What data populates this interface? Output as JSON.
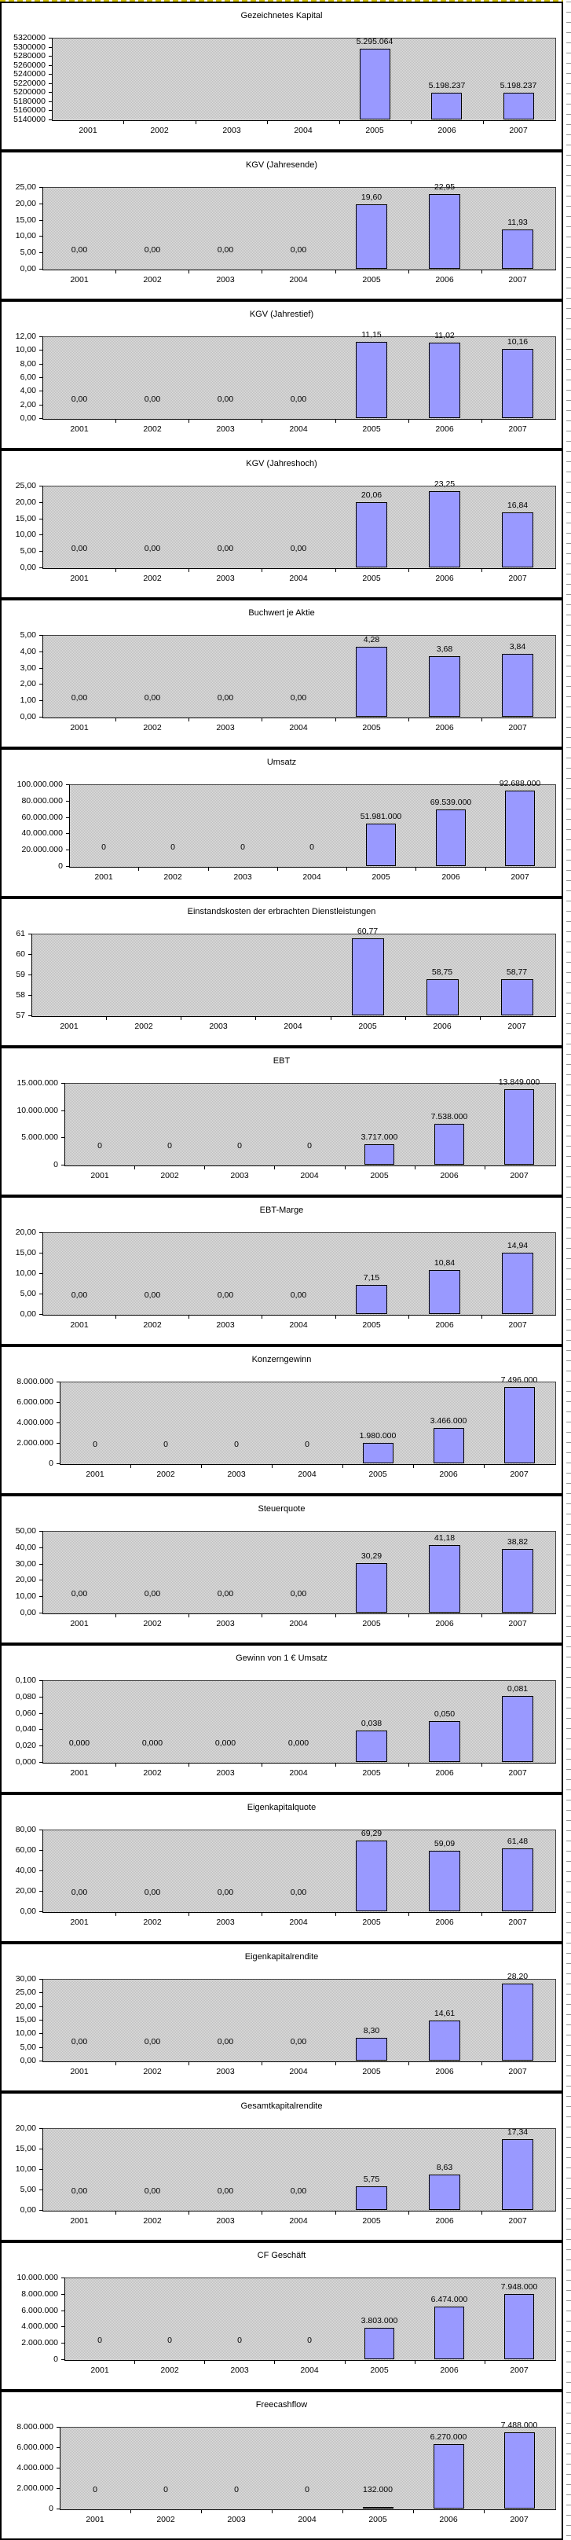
{
  "page": {
    "bar_color": "#9999ff",
    "bar_border_color": "#000000",
    "plot_pattern_color_dark": "#bfbfbf",
    "plot_pattern_color_light": "#dddddd",
    "panel_border_color": "#000000",
    "page_break_line_color": "#cdbc00"
  },
  "chart_data": [
    {
      "type": "bar",
      "title": "Gezeichnetes Kapital",
      "categories": [
        "2001",
        "2002",
        "2003",
        "2004",
        "2005",
        "2006",
        "2007"
      ],
      "values": [
        null,
        null,
        null,
        null,
        5295064,
        5198237,
        5198237
      ],
      "value_labels": [
        "",
        "",
        "",
        "",
        "5.295.064",
        "5.198.237",
        "5.198.237"
      ],
      "ylim": [
        5140000,
        5320000
      ],
      "grid": false,
      "legend": null,
      "yticks": [
        "5320000",
        "5300000",
        "5280000",
        "5260000",
        "5240000",
        "5220000",
        "5200000",
        "5180000",
        "5160000",
        "5140000"
      ],
      "plot_left": 64
    },
    {
      "type": "bar",
      "title": "KGV (Jahresende)",
      "categories": [
        "2001",
        "2002",
        "2003",
        "2004",
        "2005",
        "2006",
        "2007"
      ],
      "values": [
        0,
        0,
        0,
        0,
        19.6,
        22.95,
        11.93
      ],
      "value_labels": [
        "0,00",
        "0,00",
        "0,00",
        "0,00",
        "19,60",
        "22,95",
        "11,93"
      ],
      "ylim": [
        0,
        25
      ],
      "grid": false,
      "legend": null,
      "yticks": [
        "25,00",
        "20,00",
        "15,00",
        "10,00",
        "5,00",
        "0,00"
      ],
      "plot_left": 52
    },
    {
      "type": "bar",
      "title": "KGV (Jahrestief)",
      "categories": [
        "2001",
        "2002",
        "2003",
        "2004",
        "2005",
        "2006",
        "2007"
      ],
      "values": [
        0,
        0,
        0,
        0,
        11.15,
        11.02,
        10.16
      ],
      "value_labels": [
        "0,00",
        "0,00",
        "0,00",
        "0,00",
        "11,15",
        "11,02",
        "10,16"
      ],
      "ylim": [
        0,
        12
      ],
      "grid": false,
      "legend": null,
      "yticks": [
        "12,00",
        "10,00",
        "8,00",
        "6,00",
        "4,00",
        "2,00",
        "0,00"
      ],
      "plot_left": 52
    },
    {
      "type": "bar",
      "title": "KGV (Jahreshoch)",
      "categories": [
        "2001",
        "2002",
        "2003",
        "2004",
        "2005",
        "2006",
        "2007"
      ],
      "values": [
        0,
        0,
        0,
        0,
        20.06,
        23.25,
        16.84
      ],
      "value_labels": [
        "0,00",
        "0,00",
        "0,00",
        "0,00",
        "20,06",
        "23,25",
        "16,84"
      ],
      "ylim": [
        0,
        25
      ],
      "grid": false,
      "legend": null,
      "yticks": [
        "25,00",
        "20,00",
        "15,00",
        "10,00",
        "5,00",
        "0,00"
      ],
      "plot_left": 52
    },
    {
      "type": "bar",
      "title": "Buchwert je Aktie",
      "categories": [
        "2001",
        "2002",
        "2003",
        "2004",
        "2005",
        "2006",
        "2007"
      ],
      "values": [
        0,
        0,
        0,
        0,
        4.28,
        3.68,
        3.84
      ],
      "value_labels": [
        "0,00",
        "0,00",
        "0,00",
        "0,00",
        "4,28",
        "3,68",
        "3,84"
      ],
      "ylim": [
        0,
        5
      ],
      "grid": false,
      "legend": null,
      "yticks": [
        "5,00",
        "4,00",
        "3,00",
        "2,00",
        "1,00",
        "0,00"
      ],
      "plot_left": 52
    },
    {
      "type": "bar",
      "title": "Umsatz",
      "categories": [
        "2001",
        "2002",
        "2003",
        "2004",
        "2005",
        "2006",
        "2007"
      ],
      "values": [
        0,
        0,
        0,
        0,
        51981000,
        69539000,
        92688000
      ],
      "value_labels": [
        "0",
        "0",
        "0",
        "0",
        "51.981.000",
        "69.539.000",
        "92.688.000"
      ],
      "ylim": [
        0,
        100000000
      ],
      "grid": false,
      "legend": null,
      "yticks": [
        "100.000.000",
        "80.000.000",
        "60.000.000",
        "40.000.000",
        "20.000.000",
        "0"
      ],
      "plot_left": 86
    },
    {
      "type": "bar",
      "title": "Einstandskosten der erbrachten Dienstleistungen",
      "categories": [
        "2001",
        "2002",
        "2003",
        "2004",
        "2005",
        "2006",
        "2007"
      ],
      "values": [
        null,
        null,
        null,
        null,
        60.77,
        58.75,
        58.77
      ],
      "value_labels": [
        "",
        "",
        "",
        "",
        "60,77",
        "58,75",
        "58,77"
      ],
      "ylim": [
        57,
        61
      ],
      "grid": false,
      "legend": null,
      "yticks": [
        "61",
        "60",
        "59",
        "58",
        "57"
      ],
      "plot_left": 38
    },
    {
      "type": "bar",
      "title": "EBT",
      "categories": [
        "2001",
        "2002",
        "2003",
        "2004",
        "2005",
        "2006",
        "2007"
      ],
      "values": [
        0,
        0,
        0,
        0,
        3717000,
        7538000,
        13849000
      ],
      "value_labels": [
        "0",
        "0",
        "0",
        "0",
        "3.717.000",
        "7.538.000",
        "13.849.000"
      ],
      "ylim": [
        0,
        15000000
      ],
      "grid": false,
      "legend": null,
      "yticks": [
        "15.000.000",
        "10.000.000",
        "5.000.000",
        "0"
      ],
      "plot_left": 80
    },
    {
      "type": "bar",
      "title": "EBT-Marge",
      "categories": [
        "2001",
        "2002",
        "2003",
        "2004",
        "2005",
        "2006",
        "2007"
      ],
      "values": [
        0,
        0,
        0,
        0,
        7.15,
        10.84,
        14.94
      ],
      "value_labels": [
        "0,00",
        "0,00",
        "0,00",
        "0,00",
        "7,15",
        "10,84",
        "14,94"
      ],
      "ylim": [
        0,
        20
      ],
      "grid": false,
      "legend": null,
      "yticks": [
        "20,00",
        "15,00",
        "10,00",
        "5,00",
        "0,00"
      ],
      "plot_left": 52
    },
    {
      "type": "bar",
      "title": "Konzerngewinn",
      "categories": [
        "2001",
        "2002",
        "2003",
        "2004",
        "2005",
        "2006",
        "2007"
      ],
      "values": [
        0,
        0,
        0,
        0,
        1980000,
        3466000,
        7496000
      ],
      "value_labels": [
        "0",
        "0",
        "0",
        "0",
        "1.980.000",
        "3.466.000",
        "7.496.000"
      ],
      "ylim": [
        0,
        8000000
      ],
      "grid": false,
      "legend": null,
      "yticks": [
        "8.000.000",
        "6.000.000",
        "4.000.000",
        "2.000.000",
        "0"
      ],
      "plot_left": 74
    },
    {
      "type": "bar",
      "title": "Steuerquote",
      "categories": [
        "2001",
        "2002",
        "2003",
        "2004",
        "2005",
        "2006",
        "2007"
      ],
      "values": [
        0,
        0,
        0,
        0,
        30.29,
        41.18,
        38.82
      ],
      "value_labels": [
        "0,00",
        "0,00",
        "0,00",
        "0,00",
        "30,29",
        "41,18",
        "38,82"
      ],
      "ylim": [
        0,
        50
      ],
      "grid": false,
      "legend": null,
      "yticks": [
        "50,00",
        "40,00",
        "30,00",
        "20,00",
        "10,00",
        "0,00"
      ],
      "plot_left": 52
    },
    {
      "type": "bar",
      "title": "Gewinn von 1 € Umsatz",
      "categories": [
        "2001",
        "2002",
        "2003",
        "2004",
        "2005",
        "2006",
        "2007"
      ],
      "values": [
        0,
        0,
        0,
        0,
        0.038,
        0.05,
        0.081
      ],
      "value_labels": [
        "0,000",
        "0,000",
        "0,000",
        "0,000",
        "0,038",
        "0,050",
        "0,081"
      ],
      "ylim": [
        0,
        0.1
      ],
      "grid": false,
      "legend": null,
      "yticks": [
        "0,100",
        "0,080",
        "0,060",
        "0,040",
        "0,020",
        "0,000"
      ],
      "plot_left": 52
    },
    {
      "type": "bar",
      "title": "Eigenkapitalquote",
      "categories": [
        "2001",
        "2002",
        "2003",
        "2004",
        "2005",
        "2006",
        "2007"
      ],
      "values": [
        0,
        0,
        0,
        0,
        69.29,
        59.09,
        61.48
      ],
      "value_labels": [
        "0,00",
        "0,00",
        "0,00",
        "0,00",
        "69,29",
        "59,09",
        "61,48"
      ],
      "ylim": [
        0,
        80
      ],
      "grid": false,
      "legend": null,
      "yticks": [
        "80,00",
        "60,00",
        "40,00",
        "20,00",
        "0,00"
      ],
      "plot_left": 52
    },
    {
      "type": "bar",
      "title": "Eigenkapitalrendite",
      "categories": [
        "2001",
        "2002",
        "2003",
        "2004",
        "2005",
        "2006",
        "2007"
      ],
      "values": [
        0,
        0,
        0,
        0,
        8.3,
        14.61,
        28.2
      ],
      "value_labels": [
        "0,00",
        "0,00",
        "0,00",
        "0,00",
        "8,30",
        "14,61",
        "28,20"
      ],
      "ylim": [
        0,
        30
      ],
      "grid": false,
      "legend": null,
      "yticks": [
        "30,00",
        "25,00",
        "20,00",
        "15,00",
        "10,00",
        "5,00",
        "0,00"
      ],
      "plot_left": 52
    },
    {
      "type": "bar",
      "title": "Gesamtkapitalrendite",
      "categories": [
        "2001",
        "2002",
        "2003",
        "2004",
        "2005",
        "2006",
        "2007"
      ],
      "values": [
        0,
        0,
        0,
        0,
        5.75,
        8.63,
        17.34
      ],
      "value_labels": [
        "0,00",
        "0,00",
        "0,00",
        "0,00",
        "5,75",
        "8,63",
        "17,34"
      ],
      "ylim": [
        0,
        20
      ],
      "grid": false,
      "legend": null,
      "yticks": [
        "20,00",
        "15,00",
        "10,00",
        "5,00",
        "0,00"
      ],
      "plot_left": 52
    },
    {
      "type": "bar",
      "title": "CF Geschäft",
      "categories": [
        "2001",
        "2002",
        "2003",
        "2004",
        "2005",
        "2006",
        "2007"
      ],
      "values": [
        0,
        0,
        0,
        0,
        3803000,
        6474000,
        7948000
      ],
      "value_labels": [
        "0",
        "0",
        "0",
        "0",
        "3.803.000",
        "6.474.000",
        "7.948.000"
      ],
      "ylim": [
        0,
        10000000
      ],
      "grid": false,
      "legend": null,
      "yticks": [
        "10.000.000",
        "8.000.000",
        "6.000.000",
        "4.000.000",
        "2.000.000",
        "0"
      ],
      "plot_left": 80
    },
    {
      "type": "bar",
      "title": "Freecashflow",
      "categories": [
        "2001",
        "2002",
        "2003",
        "2004",
        "2005",
        "2006",
        "2007"
      ],
      "values": [
        0,
        0,
        0,
        0,
        132000,
        6270000,
        7488000
      ],
      "value_labels": [
        "0",
        "0",
        "0",
        "0",
        "132.000",
        "6.270.000",
        "7.488.000"
      ],
      "ylim": [
        0,
        8000000
      ],
      "grid": false,
      "legend": null,
      "yticks": [
        "8.000.000",
        "6.000.000",
        "4.000.000",
        "2.000.000",
        "0"
      ],
      "plot_left": 74
    }
  ]
}
